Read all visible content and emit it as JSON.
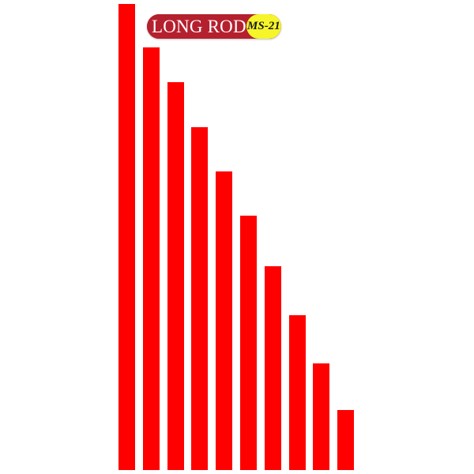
{
  "product": {
    "label": "LONG ROD",
    "code": "MS-21",
    "colors": {
      "rod": "#ff0000",
      "label_background": "#b5202e",
      "label_text": "#ffffff",
      "code_background": "#f5f52a",
      "code_text": "#1a1a1a"
    },
    "rod_count": 10,
    "rod_relative_lengths": [
      1.0,
      0.906,
      0.833,
      0.735,
      0.64,
      0.545,
      0.438,
      0.333,
      0.228,
      0.128
    ]
  }
}
